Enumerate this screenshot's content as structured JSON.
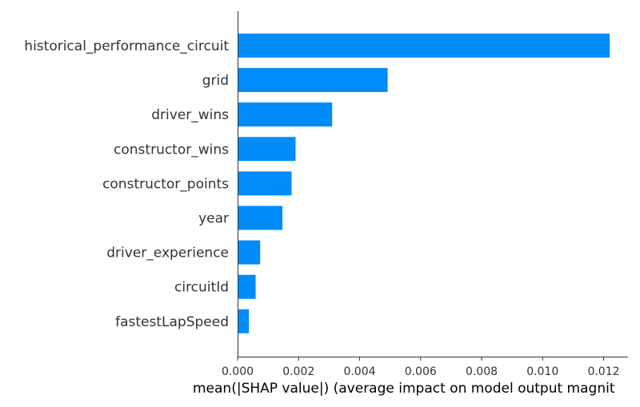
{
  "chart_data": {
    "type": "bar",
    "orientation": "horizontal",
    "categories": [
      "historical_performance_circuit",
      "grid",
      "driver_wins",
      "constructor_wins",
      "constructor_points",
      "year",
      "driver_experience",
      "circuitId",
      "fastestLapSpeed"
    ],
    "values": [
      0.0122,
      0.00492,
      0.0031,
      0.0019,
      0.00177,
      0.00147,
      0.00074,
      0.00059,
      0.00037
    ],
    "xlabel": "mean(|SHAP value|) (average impact on model output magnit",
    "ylabel": "",
    "title": "",
    "xlim": [
      0.0,
      0.0128
    ],
    "xticks": [
      0.0,
      0.002,
      0.004,
      0.006,
      0.008,
      0.01,
      0.012
    ],
    "xtick_labels": [
      "0.000",
      "0.002",
      "0.004",
      "0.006",
      "0.008",
      "0.010",
      "0.012"
    ],
    "bar_color": "#008bfb",
    "grid": false,
    "legend": "none"
  }
}
